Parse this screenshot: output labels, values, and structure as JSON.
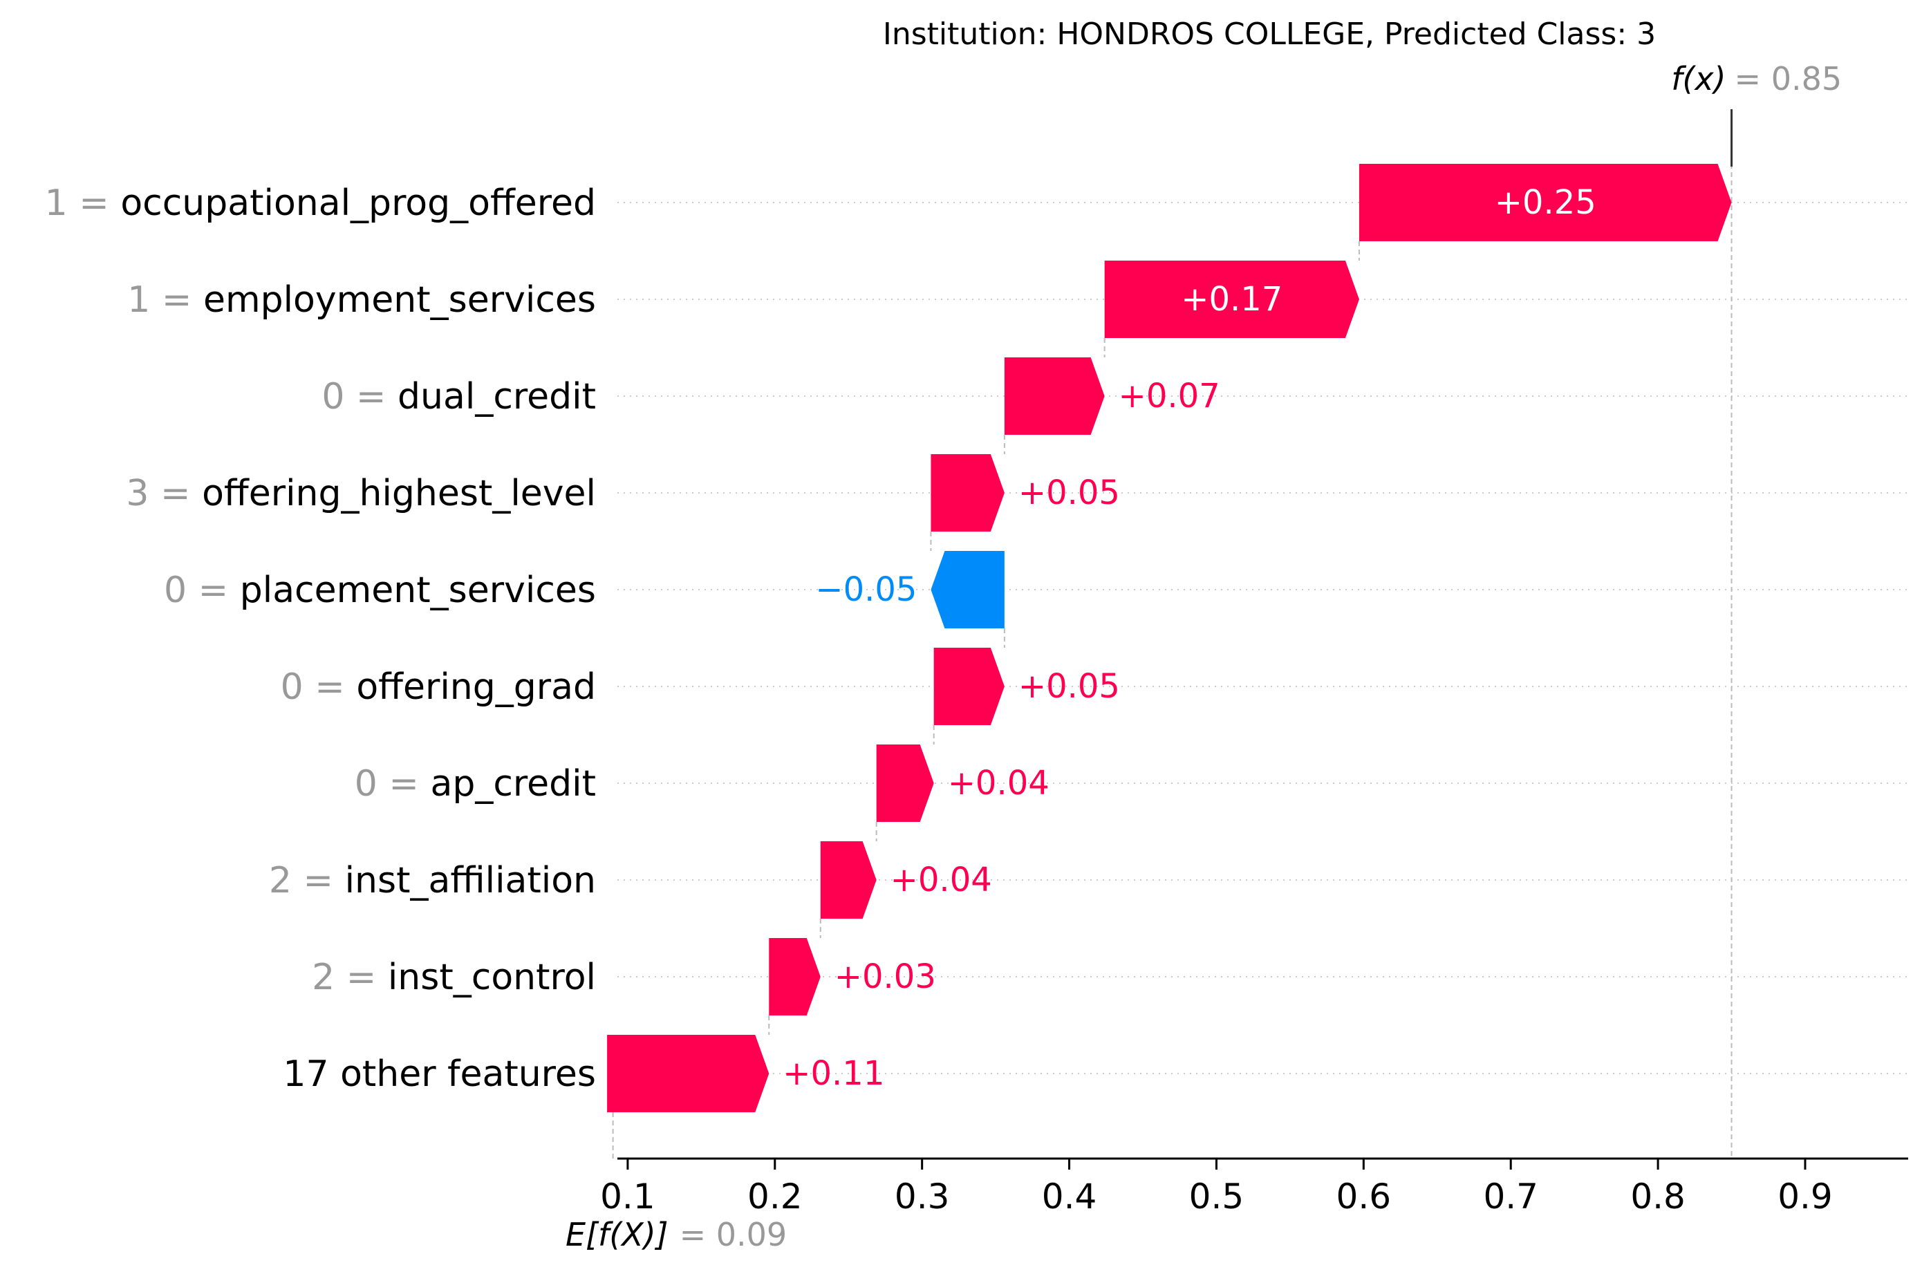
{
  "chart_data": {
    "type": "waterfall",
    "title": "Institution: HONDROS COLLEGE, Predicted Class: 3",
    "base_value": 0.09,
    "base_value_text": "0.09",
    "base_label": "E[f(X)]",
    "output_value": 0.85,
    "output_value_text": "0.85",
    "output_label": "f(x)",
    "xlim": [
      0.093,
      0.97
    ],
    "x_ticks": [
      0.1,
      0.2,
      0.3,
      0.4,
      0.5,
      0.6,
      0.7,
      0.8,
      0.9
    ],
    "x_tick_labels": [
      "0.1",
      "0.2",
      "0.3",
      "0.4",
      "0.5",
      "0.6",
      "0.7",
      "0.8",
      "0.9"
    ],
    "grid": "horizontal dotted",
    "features": [
      {
        "value": "1",
        "name": "occupational_prog_offered",
        "shap": 0.253,
        "label": "+0.25",
        "start": 0.597
      },
      {
        "value": "1",
        "name": "employment_services",
        "shap": 0.173,
        "label": "+0.17",
        "start": 0.424
      },
      {
        "value": "0",
        "name": "dual_credit",
        "shap": 0.068,
        "label": "+0.07",
        "start": 0.356
      },
      {
        "value": "3",
        "name": "offering_highest_level",
        "shap": 0.05,
        "label": "+0.05",
        "start": 0.306
      },
      {
        "value": "0",
        "name": "placement_services",
        "shap": -0.05,
        "label": "−0.05",
        "start": 0.356
      },
      {
        "value": "0",
        "name": "offering_grad",
        "shap": 0.048,
        "label": "+0.05",
        "start": 0.308
      },
      {
        "value": "0",
        "name": "ap_credit",
        "shap": 0.039,
        "label": "+0.04",
        "start": 0.269
      },
      {
        "value": "2",
        "name": "inst_affiliation",
        "shap": 0.038,
        "label": "+0.04",
        "start": 0.231
      },
      {
        "value": "2",
        "name": "inst_control",
        "shap": 0.035,
        "label": "+0.03",
        "start": 0.196
      },
      {
        "value": "",
        "name": "17 other features",
        "shap": 0.11,
        "label": "+0.11",
        "start": 0.086
      }
    ],
    "colors": {
      "positive": "#ff0051",
      "negative": "#008bfb",
      "feature_value": "#999999",
      "connector": "#bbbbbb",
      "grid": "#cccccc",
      "bar_text_inside": "#ffffff",
      "axis": "#000000"
    }
  }
}
